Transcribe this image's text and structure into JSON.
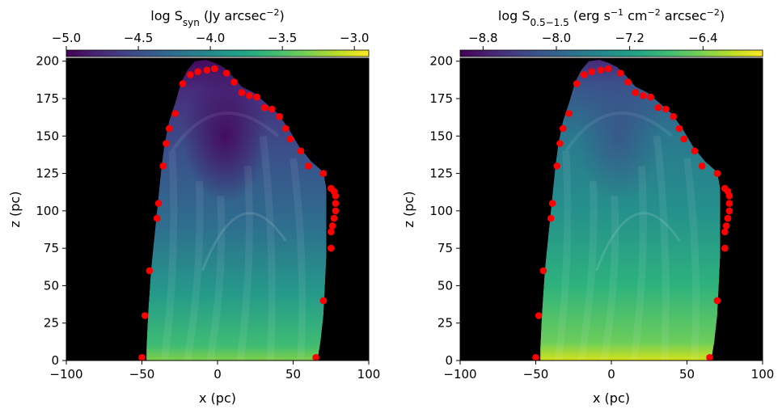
{
  "chart_data": [
    {
      "type": "heatmap",
      "colorbar": {
        "label_html": "log S<tspan baseline-shift='sub' font-size='12'>syn</tspan> (Jy arcsec<tspan baseline-shift='super' font-size='11'>−2</tspan>)",
        "ticks": [
          -5.0,
          -4.5,
          -4.0,
          -3.5,
          -3.0
        ],
        "tick_labels": [
          "−5.0",
          "−4.5",
          "−4.0",
          "−3.5",
          "−3.0"
        ],
        "range": [
          -5.0,
          -2.9
        ],
        "colormap": "viridis",
        "position": "top"
      },
      "xlabel": "x (pc)",
      "ylabel": "z (pc)",
      "xlim": [
        -100,
        100
      ],
      "ylim": [
        0,
        202
      ],
      "xticks": [
        -100,
        -50,
        0,
        50,
        100
      ],
      "xtick_labels": [
        "−100",
        "−50",
        "0",
        "50",
        "100"
      ],
      "yticks": [
        0,
        25,
        50,
        75,
        100,
        125,
        150,
        175,
        200
      ],
      "ytick_labels": [
        "0",
        "25",
        "50",
        "75",
        "100",
        "125",
        "150",
        "175",
        "200"
      ],
      "background_color": "#000000",
      "marker_color": "#ff0000",
      "markers": [
        {
          "x": -50,
          "y": 2
        },
        {
          "x": -48,
          "y": 30
        },
        {
          "x": -45,
          "y": 60
        },
        {
          "x": -40,
          "y": 95
        },
        {
          "x": -39,
          "y": 105
        },
        {
          "x": -36,
          "y": 130
        },
        {
          "x": -34,
          "y": 145
        },
        {
          "x": -32,
          "y": 155
        },
        {
          "x": -28,
          "y": 165
        },
        {
          "x": -23,
          "y": 185
        },
        {
          "x": -18,
          "y": 191
        },
        {
          "x": -13,
          "y": 193
        },
        {
          "x": -7,
          "y": 194
        },
        {
          "x": -2,
          "y": 195
        },
        {
          "x": 6,
          "y": 192
        },
        {
          "x": 11,
          "y": 186
        },
        {
          "x": 16,
          "y": 179
        },
        {
          "x": 21,
          "y": 177
        },
        {
          "x": 26,
          "y": 176
        },
        {
          "x": 31,
          "y": 169
        },
        {
          "x": 36,
          "y": 168
        },
        {
          "x": 41,
          "y": 163
        },
        {
          "x": 45,
          "y": 155
        },
        {
          "x": 48,
          "y": 148
        },
        {
          "x": 55,
          "y": 140
        },
        {
          "x": 60,
          "y": 130
        },
        {
          "x": 70,
          "y": 125
        },
        {
          "x": 75,
          "y": 115
        },
        {
          "x": 77,
          "y": 113
        },
        {
          "x": 78,
          "y": 110
        },
        {
          "x": 78,
          "y": 105
        },
        {
          "x": 78,
          "y": 100
        },
        {
          "x": 77,
          "y": 95
        },
        {
          "x": 76,
          "y": 90
        },
        {
          "x": 75,
          "y": 86
        },
        {
          "x": 75,
          "y": 75
        },
        {
          "x": 70,
          "y": 40
        },
        {
          "x": 65,
          "y": 2
        }
      ]
    },
    {
      "type": "heatmap",
      "colorbar": {
        "label_html": "log S<tspan baseline-shift='sub' font-size='12'>0.5−1.5</tspan> (erg s<tspan baseline-shift='super' font-size='11'>−1</tspan> cm<tspan baseline-shift='super' font-size='11'>−2</tspan> arcsec<tspan baseline-shift='super' font-size='11'>−2</tspan>)",
        "ticks": [
          -8.8,
          -8.0,
          -7.2,
          -6.4
        ],
        "tick_labels": [
          "−8.8",
          "−8.0",
          "−7.2",
          "−6.4"
        ],
        "range": [
          -9.05,
          -5.75
        ],
        "colormap": "viridis",
        "position": "top"
      },
      "xlabel": "x (pc)",
      "ylabel": "z (pc)",
      "xlim": [
        -100,
        100
      ],
      "ylim": [
        0,
        202
      ],
      "xticks": [
        -100,
        -50,
        0,
        50,
        100
      ],
      "xtick_labels": [
        "−100",
        "−50",
        "0",
        "50",
        "100"
      ],
      "yticks": [
        0,
        25,
        50,
        75,
        100,
        125,
        150,
        175,
        200
      ],
      "ytick_labels": [
        "0",
        "25",
        "50",
        "75",
        "100",
        "125",
        "150",
        "175",
        "200"
      ],
      "background_color": "#000000",
      "marker_color": "#ff0000",
      "markers": [
        {
          "x": -50,
          "y": 2
        },
        {
          "x": -48,
          "y": 30
        },
        {
          "x": -45,
          "y": 60
        },
        {
          "x": -40,
          "y": 95
        },
        {
          "x": -39,
          "y": 105
        },
        {
          "x": -36,
          "y": 130
        },
        {
          "x": -34,
          "y": 145
        },
        {
          "x": -32,
          "y": 155
        },
        {
          "x": -28,
          "y": 165
        },
        {
          "x": -23,
          "y": 185
        },
        {
          "x": -18,
          "y": 191
        },
        {
          "x": -13,
          "y": 193
        },
        {
          "x": -7,
          "y": 194
        },
        {
          "x": -2,
          "y": 195
        },
        {
          "x": 6,
          "y": 192
        },
        {
          "x": 11,
          "y": 186
        },
        {
          "x": 16,
          "y": 179
        },
        {
          "x": 21,
          "y": 177
        },
        {
          "x": 26,
          "y": 176
        },
        {
          "x": 31,
          "y": 169
        },
        {
          "x": 36,
          "y": 168
        },
        {
          "x": 41,
          "y": 163
        },
        {
          "x": 45,
          "y": 155
        },
        {
          "x": 48,
          "y": 148
        },
        {
          "x": 55,
          "y": 140
        },
        {
          "x": 60,
          "y": 130
        },
        {
          "x": 70,
          "y": 125
        },
        {
          "x": 75,
          "y": 115
        },
        {
          "x": 77,
          "y": 113
        },
        {
          "x": 78,
          "y": 110
        },
        {
          "x": 78,
          "y": 105
        },
        {
          "x": 78,
          "y": 100
        },
        {
          "x": 77,
          "y": 95
        },
        {
          "x": 76,
          "y": 90
        },
        {
          "x": 75,
          "y": 86
        },
        {
          "x": 75,
          "y": 75
        },
        {
          "x": 70,
          "y": 40
        },
        {
          "x": 65,
          "y": 2
        }
      ]
    }
  ]
}
